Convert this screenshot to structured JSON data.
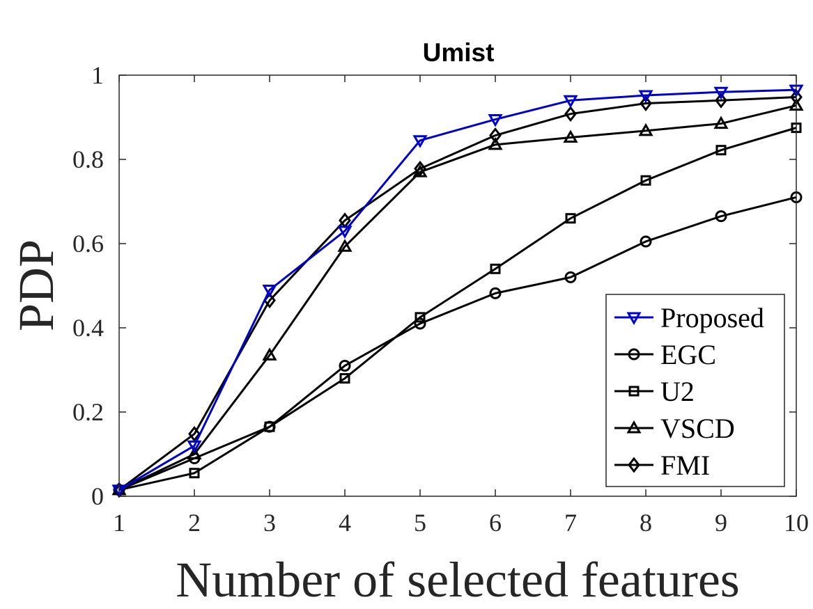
{
  "chart_data": {
    "type": "line",
    "title": "Umist",
    "xlabel": "Number of selected features",
    "ylabel": "PDP",
    "x": [
      1,
      2,
      3,
      4,
      5,
      6,
      7,
      8,
      9,
      10
    ],
    "xlim": [
      1,
      10
    ],
    "ylim": [
      0,
      1
    ],
    "xticks": [
      "1",
      "2",
      "3",
      "4",
      "5",
      "6",
      "7",
      "8",
      "9",
      "10"
    ],
    "yticks": [
      "0",
      "0.2",
      "0.4",
      "0.6",
      "0.8",
      "1"
    ],
    "grid": false,
    "legend_position": "bottom-right",
    "series": [
      {
        "name": "Proposed",
        "marker": "triangle-down",
        "color": "#0000cc",
        "values": [
          0.015,
          0.12,
          0.49,
          0.63,
          0.845,
          0.895,
          0.94,
          0.952,
          0.96,
          0.965
        ]
      },
      {
        "name": "EGC",
        "marker": "circle",
        "color": "#000000",
        "values": [
          0.015,
          0.09,
          0.165,
          0.31,
          0.41,
          0.482,
          0.52,
          0.605,
          0.665,
          0.71
        ]
      },
      {
        "name": "U2",
        "marker": "square",
        "color": "#000000",
        "values": [
          0.015,
          0.055,
          0.165,
          0.28,
          0.425,
          0.54,
          0.66,
          0.75,
          0.822,
          0.875
        ]
      },
      {
        "name": "VSCD",
        "marker": "triangle-up",
        "color": "#000000",
        "values": [
          0.015,
          0.1,
          0.335,
          0.593,
          0.77,
          0.835,
          0.852,
          0.868,
          0.885,
          0.928
        ]
      },
      {
        "name": "FMI",
        "marker": "diamond",
        "color": "#000000",
        "values": [
          0.015,
          0.148,
          0.465,
          0.655,
          0.778,
          0.857,
          0.908,
          0.933,
          0.94,
          0.948
        ]
      }
    ]
  }
}
